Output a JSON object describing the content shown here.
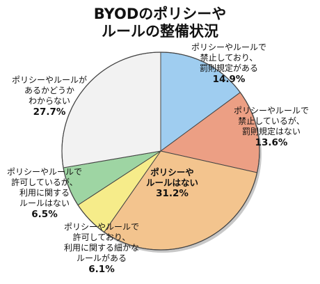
{
  "chart_data": {
    "type": "pie",
    "title": [
      "BYODのポリシーや",
      "ルールの整備状況"
    ],
    "unit": "%",
    "colors": {
      "outline": "#444444",
      "shadow": "#c8c8c8"
    },
    "slices": [
      {
        "label": [
          "ポリシーやルールで",
          "禁止しており、",
          "罰則規定がある"
        ],
        "value": 14.9,
        "display": "14.9%",
        "color": "#9fcdf0"
      },
      {
        "label": [
          "ポリシーやルールで",
          "禁止しているが、",
          "罰則規定はない"
        ],
        "value": 13.6,
        "display": "13.6%",
        "color": "#ec9f84"
      },
      {
        "label": [
          "ポリシーや",
          "ルールはない"
        ],
        "value": 31.2,
        "display": "31.2%",
        "color": "#f3c48e",
        "emphasis": true
      },
      {
        "label": [
          "ポリシーやルールで",
          "許可しており、",
          "利用に関する細かな",
          "ルールがある"
        ],
        "value": 6.1,
        "display": "6.1%",
        "color": "#f6ec8a"
      },
      {
        "label": [
          "ポリシーやルールで",
          "許可しているが、",
          "利用に関する",
          "ルールはない"
        ],
        "value": 6.5,
        "display": "6.5%",
        "color": "#9ed5a3"
      },
      {
        "label": [
          "ポリシーやルールが",
          "あるかどうか",
          "わからない"
        ],
        "value": 27.7,
        "display": "27.7%",
        "color": "#f2f2f2"
      }
    ]
  }
}
